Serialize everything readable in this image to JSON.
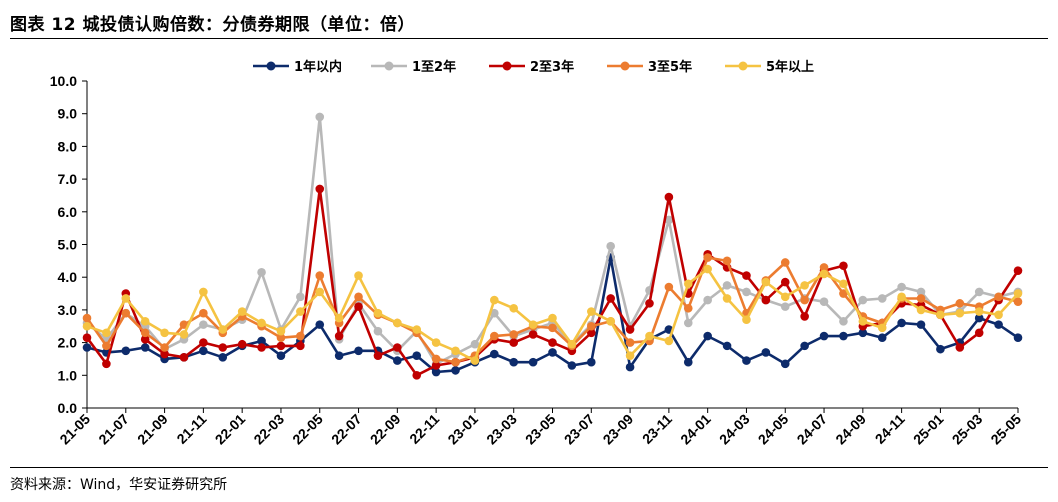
{
  "title": "图表 12 城投债认购倍数：分债券期限（单位：倍）",
  "source": "资料来源：Wind，华安证券研究所",
  "chart_data": {
    "type": "line",
    "ylim": [
      0,
      10
    ],
    "y_ticks": [
      "0.0",
      "1.0",
      "2.0",
      "3.0",
      "4.0",
      "5.0",
      "6.0",
      "7.0",
      "8.0",
      "9.0",
      "10.0"
    ],
    "x_tick_labels": [
      "21-05",
      "21-07",
      "21-09",
      "21-11",
      "22-01",
      "22-03",
      "22-05",
      "22-07",
      "22-09",
      "22-11",
      "23-01",
      "23-03",
      "23-05",
      "23-07",
      "23-09",
      "23-11",
      "24-01",
      "24-03",
      "24-05",
      "24-07",
      "24-09",
      "24-11",
      "25-01",
      "25-03",
      "25-05"
    ],
    "legend": "top-center",
    "series": [
      {
        "name": "1年以内",
        "color": "#0d2b6b",
        "values": [
          1.85,
          1.7,
          1.75,
          1.85,
          1.5,
          1.55,
          1.75,
          1.55,
          1.9,
          2.05,
          1.6,
          2.05,
          2.55,
          1.6,
          1.75,
          1.75,
          1.45,
          1.6,
          1.1,
          1.15,
          1.4,
          1.65,
          1.4,
          1.4,
          1.7,
          1.3,
          1.4,
          4.6,
          1.25,
          2.1,
          2.4,
          1.4,
          2.2,
          1.9,
          1.45,
          1.7,
          1.35,
          1.9,
          2.2,
          2.2,
          2.3,
          2.15,
          2.6,
          2.55,
          1.8,
          2.0,
          2.75,
          2.55,
          2.15
        ]
      },
      {
        "name": "1至2年",
        "color": "#b8b8b8",
        "values": [
          2.6,
          2.1,
          2.9,
          2.5,
          1.8,
          2.1,
          2.55,
          2.4,
          2.7,
          4.15,
          2.4,
          3.4,
          8.9,
          2.1,
          3.2,
          2.35,
          1.75,
          2.35,
          1.35,
          1.65,
          1.95,
          2.9,
          2.2,
          2.4,
          2.6,
          1.95,
          2.55,
          4.95,
          2.5,
          3.6,
          5.75,
          2.6,
          3.3,
          3.75,
          3.55,
          3.3,
          3.1,
          3.35,
          3.25,
          2.65,
          3.3,
          3.35,
          3.7,
          3.55,
          2.85,
          2.95,
          3.55,
          3.4,
          3.55
        ]
      },
      {
        "name": "2至3年",
        "color": "#c00000",
        "values": [
          2.15,
          1.35,
          3.5,
          2.1,
          1.65,
          1.55,
          2.0,
          1.85,
          1.95,
          1.85,
          1.9,
          1.9,
          6.7,
          2.2,
          3.1,
          1.6,
          1.85,
          1.0,
          1.3,
          1.4,
          1.55,
          2.1,
          2.0,
          2.25,
          2.0,
          1.75,
          2.3,
          3.35,
          2.4,
          3.2,
          6.45,
          3.5,
          4.7,
          4.3,
          4.05,
          3.3,
          3.85,
          2.8,
          4.2,
          4.35,
          2.5,
          2.6,
          3.2,
          3.15,
          2.85,
          1.85,
          2.3,
          3.3,
          4.2
        ]
      },
      {
        "name": "3至5年",
        "color": "#ec7c30",
        "values": [
          2.75,
          1.9,
          2.9,
          2.3,
          1.85,
          2.55,
          2.9,
          2.3,
          2.8,
          2.5,
          2.15,
          2.2,
          4.05,
          2.6,
          3.4,
          2.85,
          2.6,
          2.3,
          1.5,
          1.4,
          1.6,
          2.2,
          2.25,
          2.5,
          2.45,
          1.9,
          2.5,
          2.65,
          2.0,
          2.05,
          3.7,
          3.05,
          4.6,
          4.5,
          2.9,
          3.9,
          4.45,
          3.3,
          4.3,
          3.5,
          2.8,
          2.6,
          3.35,
          3.35,
          3.0,
          3.2,
          3.1,
          3.4,
          3.25
        ]
      },
      {
        "name": "5年以上",
        "color": "#f5c342",
        "values": [
          2.5,
          2.3,
          3.35,
          2.65,
          2.3,
          2.25,
          3.55,
          2.4,
          2.95,
          2.6,
          2.35,
          2.95,
          3.55,
          2.75,
          4.05,
          2.9,
          2.6,
          2.4,
          2.0,
          1.75,
          1.45,
          3.3,
          3.05,
          2.55,
          2.75,
          1.95,
          2.95,
          2.65,
          1.6,
          2.2,
          2.05,
          3.8,
          4.25,
          3.35,
          2.7,
          3.85,
          3.4,
          3.75,
          4.1,
          3.8,
          2.65,
          2.45,
          3.4,
          3.0,
          2.85,
          2.9,
          2.95,
          2.85,
          3.5
        ]
      }
    ]
  }
}
